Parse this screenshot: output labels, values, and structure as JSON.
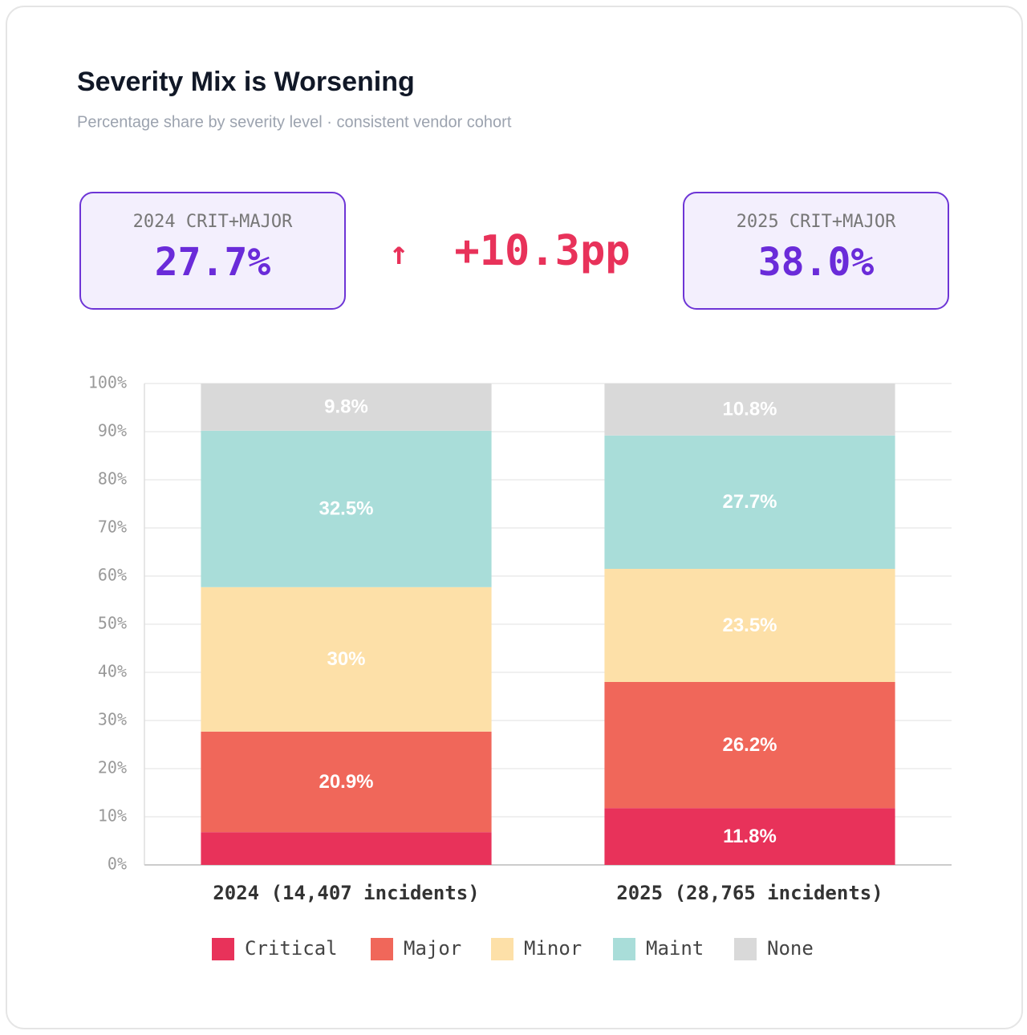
{
  "kpis": {
    "left": {
      "label": "2024 CRIT+MAJOR",
      "value": "27.7%"
    },
    "delta_arrow": "↑",
    "delta": "+10.3pp",
    "right": {
      "label": "2025 CRIT+MAJOR",
      "value": "38.0%"
    }
  },
  "chart_data": {
    "type": "stacked_bar",
    "title": "Severity Mix is Worsening",
    "subtitle": "Percentage share by severity level · consistent vendor cohort",
    "categories": [
      "2024 (14,407 incidents)",
      "2025 (28,765 incidents)"
    ],
    "series": [
      {
        "name": "Critical",
        "color": "#e8325a",
        "values": [
          6.8,
          11.8
        ],
        "value_labels": [
          null,
          "11.8%"
        ]
      },
      {
        "name": "Major",
        "color": "#f0675a",
        "values": [
          20.9,
          26.2
        ],
        "value_labels": [
          "20.9%",
          "26.2%"
        ]
      },
      {
        "name": "Minor",
        "color": "#fde0a8",
        "values": [
          30,
          23.5
        ],
        "value_labels": [
          "30%",
          "23.5%"
        ]
      },
      {
        "name": "Maint",
        "color": "#a9ddd9",
        "values": [
          32.5,
          27.7
        ],
        "value_labels": [
          "32.5%",
          "27.7%"
        ]
      },
      {
        "name": "None",
        "color": "#d9d9d9",
        "values": [
          9.8,
          10.8
        ],
        "value_labels": [
          "9.8%",
          "10.8%"
        ]
      }
    ],
    "ylim": [
      0,
      100
    ],
    "yticks": [
      {
        "value": 0,
        "label": "0%"
      },
      {
        "value": 10,
        "label": "10%"
      },
      {
        "value": 20,
        "label": "20%"
      },
      {
        "value": 30,
        "label": "30%"
      },
      {
        "value": 40,
        "label": "40%"
      },
      {
        "value": 50,
        "label": "50%"
      },
      {
        "value": 60,
        "label": "60%"
      },
      {
        "value": 70,
        "label": "70%"
      },
      {
        "value": 80,
        "label": "80%"
      },
      {
        "value": 90,
        "label": "90%"
      },
      {
        "value": 100,
        "label": "100%"
      }
    ],
    "grid": true
  }
}
